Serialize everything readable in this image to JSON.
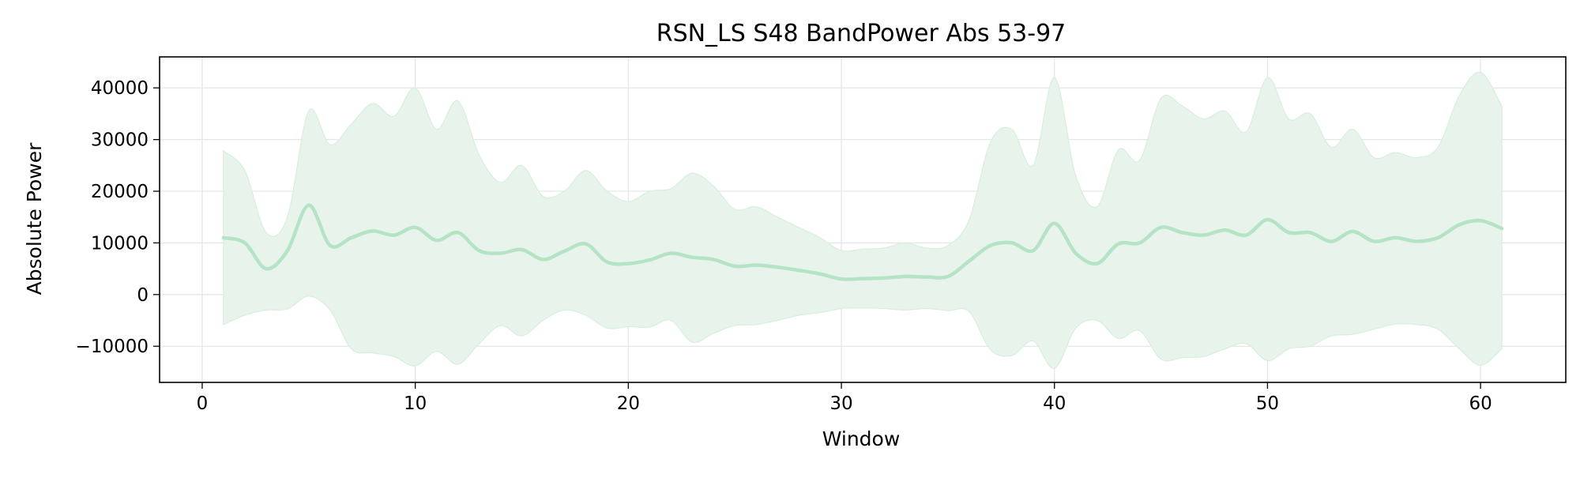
{
  "chart_data": {
    "type": "line",
    "title": "RSN_LS S48 BandPower Abs 53-97",
    "xlabel": "Window",
    "ylabel": "Absolute Power",
    "xlim": [
      -2,
      64
    ],
    "ylim": [
      -17000,
      46000
    ],
    "xticks": [
      0,
      10,
      20,
      30,
      40,
      50,
      60
    ],
    "xtick_labels": [
      "0",
      "10",
      "20",
      "30",
      "40",
      "50",
      "60"
    ],
    "yticks": [
      -10000,
      0,
      10000,
      20000,
      30000,
      40000
    ],
    "ytick_labels": [
      "−10000",
      "0",
      "10000",
      "20000",
      "30000",
      "40000"
    ],
    "grid": true,
    "legend": "none",
    "colors": {
      "line": "#b5e3c5",
      "band": "#e8f4eb",
      "band_edge": "#d7eedd",
      "grid": "#e6e6e6",
      "axis": "#000000"
    },
    "series": [
      {
        "x": [
          1,
          2,
          3,
          4,
          5,
          6,
          7,
          8,
          9,
          10,
          11,
          12,
          13,
          14,
          15,
          16,
          17,
          18,
          19,
          20,
          21,
          22,
          23,
          24,
          25,
          26,
          27,
          28,
          29,
          30,
          31,
          32,
          33,
          34,
          35,
          36,
          37,
          38,
          39,
          40,
          41,
          42,
          43,
          44,
          45,
          46,
          47,
          48,
          49,
          50,
          51,
          52,
          53,
          54,
          55,
          56,
          57,
          58,
          59,
          60,
          61
        ],
        "mean": [
          11000,
          10000,
          5000,
          8500,
          17300,
          9500,
          11000,
          12300,
          11500,
          13000,
          10500,
          12000,
          8500,
          8000,
          8700,
          6800,
          8400,
          9800,
          6300,
          6000,
          6700,
          8000,
          7200,
          6800,
          5500,
          5700,
          5300,
          4700,
          4000,
          3000,
          3100,
          3200,
          3500,
          3400,
          3500,
          6500,
          9500,
          10000,
          8500,
          13800,
          8000,
          6000,
          9800,
          10000,
          13000,
          12000,
          11500,
          12500,
          11500,
          14500,
          12000,
          12000,
          10300,
          12200,
          10300,
          11000,
          10300,
          11000,
          13500,
          14300,
          12800
        ],
        "upper": [
          27800,
          24000,
          12000,
          15000,
          35500,
          29000,
          33000,
          37000,
          34500,
          40000,
          32000,
          37500,
          27000,
          21700,
          25000,
          19000,
          20000,
          24000,
          20000,
          18000,
          20000,
          20500,
          23500,
          21000,
          16500,
          17000,
          15000,
          13000,
          11000,
          8500,
          8800,
          9000,
          10000,
          9000,
          9500,
          14500,
          29500,
          32000,
          25000,
          42000,
          23000,
          17000,
          28000,
          26000,
          38000,
          36500,
          34000,
          35500,
          31500,
          42000,
          34000,
          35000,
          28500,
          32000,
          26500,
          27500,
          26500,
          28500,
          38500,
          43000,
          36500
        ],
        "lower": [
          -5800,
          -4000,
          -3000,
          -2800,
          -300,
          -3000,
          -10500,
          -11300,
          -12000,
          -13800,
          -11000,
          -13500,
          -9500,
          -6000,
          -8000,
          -5000,
          -3000,
          -4000,
          -6500,
          -6200,
          -6300,
          -5000,
          -9200,
          -7500,
          -6000,
          -5800,
          -5000,
          -4000,
          -3500,
          -2700,
          -2600,
          -2700,
          -3000,
          -2700,
          -3100,
          -3300,
          -10700,
          -11800,
          -9000,
          -14300,
          -6500,
          -5000,
          -8500,
          -7000,
          -12500,
          -12200,
          -12000,
          -10500,
          -9500,
          -12800,
          -10500,
          -10000,
          -8000,
          -7700,
          -6700,
          -5700,
          -5800,
          -6700,
          -10500,
          -13700,
          -10500
        ]
      }
    ]
  }
}
